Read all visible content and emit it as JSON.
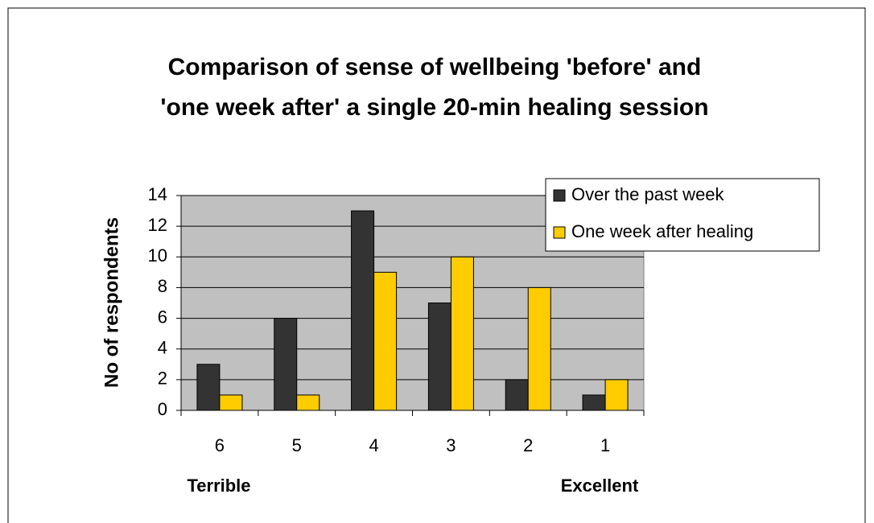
{
  "chart_data": {
    "type": "bar",
    "title": [
      "Comparison of sense of wellbeing 'before' and",
      "'one week after' a single 20-min healing session"
    ],
    "y_label": "No of respondents",
    "annotations": [
      "Terrible",
      "Excellent"
    ],
    "categories": [
      "6",
      "5",
      "4",
      "3",
      "2",
      "1"
    ],
    "series": [
      {
        "name": "Over the past week",
        "color": "#333333",
        "values": [
          3,
          6,
          13,
          7,
          2,
          1
        ]
      },
      {
        "name": "One week after healing",
        "color": "#ffcc00",
        "values": [
          1,
          1,
          9,
          10,
          8,
          2
        ]
      }
    ],
    "ylim": [
      0,
      14
    ],
    "yticks": [
      0,
      2,
      4,
      6,
      8,
      10,
      12,
      14
    ],
    "grid": true,
    "legend": "upper right",
    "plot_background": "#c0c0c0"
  }
}
